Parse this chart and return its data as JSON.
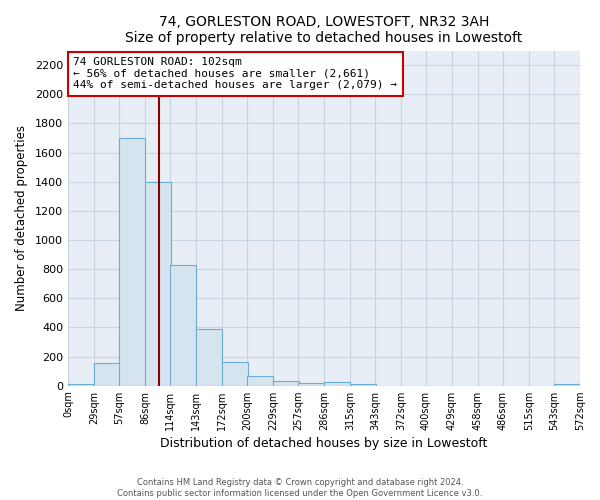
{
  "title": "74, GORLESTON ROAD, LOWESTOFT, NR32 3AH",
  "subtitle": "Size of property relative to detached houses in Lowestoft",
  "xlabel": "Distribution of detached houses by size in Lowestoft",
  "ylabel": "Number of detached properties",
  "bar_left_edges": [
    0,
    29,
    57,
    86,
    114,
    143,
    172,
    200,
    229,
    257,
    286,
    315,
    343,
    372,
    400,
    429,
    458,
    486,
    515,
    543
  ],
  "bar_heights": [
    15,
    155,
    1700,
    1400,
    830,
    390,
    160,
    65,
    30,
    20,
    25,
    10,
    0,
    0,
    0,
    0,
    0,
    0,
    0,
    15
  ],
  "bin_width": 29,
  "bar_color": "#d6e4f0",
  "bar_edge_color": "#6aaed6",
  "tick_labels": [
    "0sqm",
    "29sqm",
    "57sqm",
    "86sqm",
    "114sqm",
    "143sqm",
    "172sqm",
    "200sqm",
    "229sqm",
    "257sqm",
    "286sqm",
    "315sqm",
    "343sqm",
    "372sqm",
    "400sqm",
    "429sqm",
    "458sqm",
    "486sqm",
    "515sqm",
    "543sqm",
    "572sqm"
  ],
  "property_line_x": 102,
  "property_line_color": "#8b0000",
  "annotation_line1": "74 GORLESTON ROAD: 102sqm",
  "annotation_line2": "← 56% of detached houses are smaller (2,661)",
  "annotation_line3": "44% of semi-detached houses are larger (2,079) →",
  "annotation_box_color": "#ffffff",
  "annotation_box_edge_color": "#cc0000",
  "ylim": [
    0,
    2300
  ],
  "yticks": [
    0,
    200,
    400,
    600,
    800,
    1000,
    1200,
    1400,
    1600,
    1800,
    2000,
    2200
  ],
  "footer_line1": "Contains HM Land Registry data © Crown copyright and database right 2024.",
  "footer_line2": "Contains public sector information licensed under the Open Government Licence v3.0.",
  "figure_background_color": "#ffffff",
  "plot_background_color": "#e8eef5",
  "grid_color": "#c8d4e0"
}
